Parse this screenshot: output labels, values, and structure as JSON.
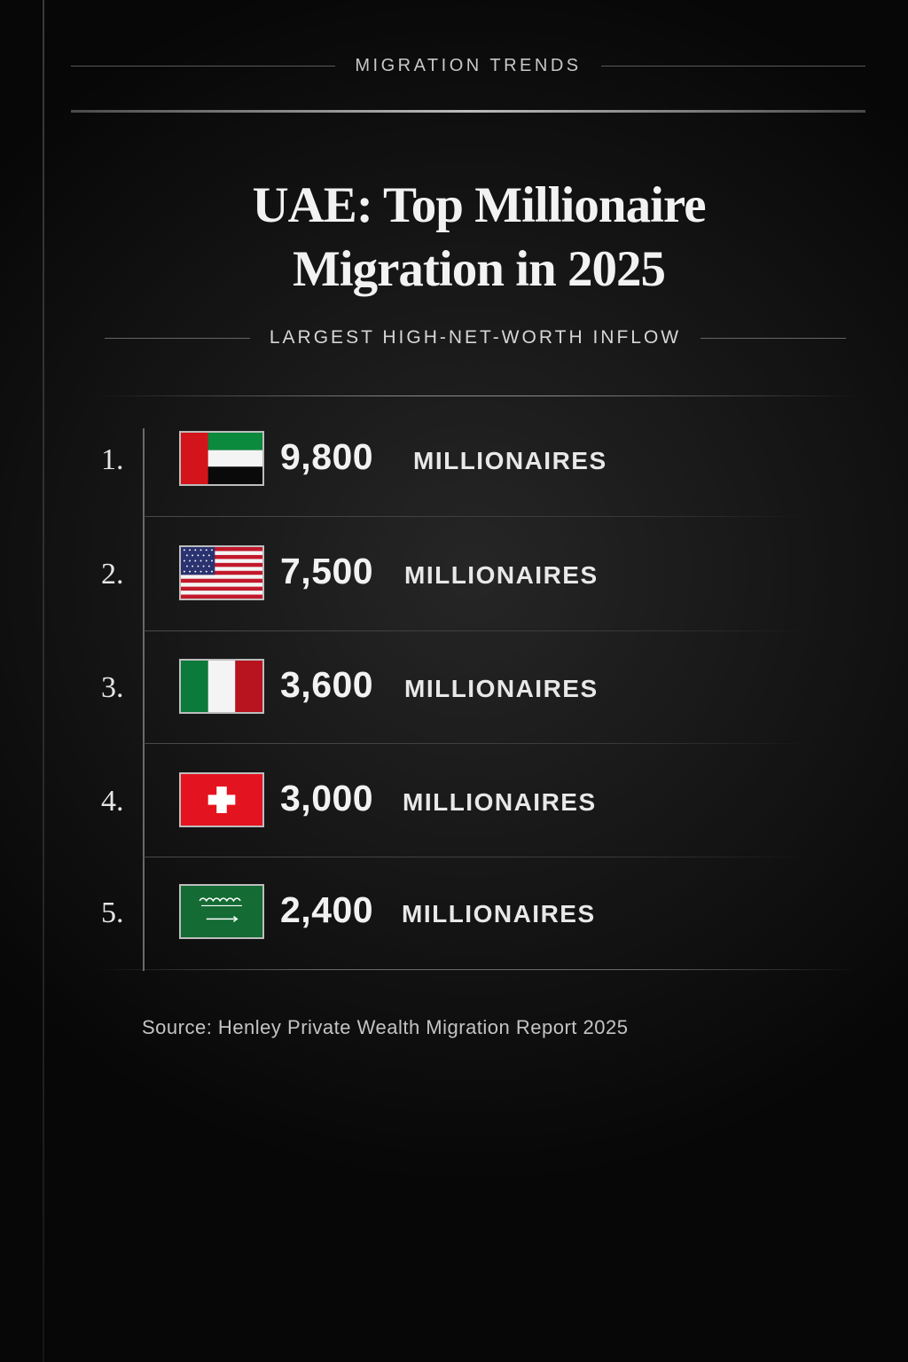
{
  "kicker": "MIGRATION TRENDS",
  "title": {
    "line1": "UAE: Top Millionaire",
    "line2": "Migration in 2025"
  },
  "subtitle": "LARGEST HIGH-NET-WORTH INFLOW",
  "rows": [
    {
      "rank": "1.",
      "value": "9,800",
      "unit": "MILLIONAIRES",
      "flag": "uae-flag-icon"
    },
    {
      "rank": "2.",
      "value": "7,500",
      "unit": "MILLIONAIRES",
      "flag": "usa-flag-icon"
    },
    {
      "rank": "3.",
      "value": "3,600",
      "unit": "MILLIONAIRES",
      "flag": "italy-flag-icon"
    },
    {
      "rank": "4.",
      "value": "3,000",
      "unit": "MILLIONAIRES",
      "flag": "switzerland-flag-icon"
    },
    {
      "rank": "5.",
      "value": "2,400",
      "unit": "MILLIONAIRES",
      "flag": "saudi-arabia-flag-icon"
    }
  ],
  "source": "Source: Henley Private Wealth Migration Report 2025",
  "colors": {
    "background": "#151515",
    "text": "#f2f2f2",
    "rule": "#bdbdbd"
  }
}
